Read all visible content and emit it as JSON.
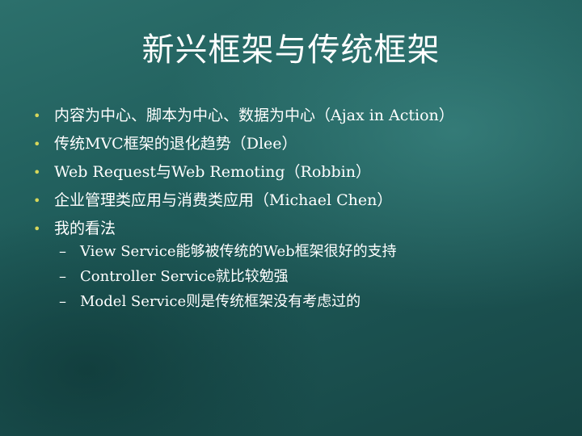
{
  "slide": {
    "title": "新兴框架与传统框架",
    "bullets": [
      {
        "text": "内容为中心、脚本为中心、数据为中心（Ajax in Action）"
      },
      {
        "text": "传统MVC框架的退化趋势（Dlee）"
      },
      {
        "text": "Web Request与Web Remoting（Robbin）"
      },
      {
        "text": "企业管理类应用与消费类应用（Michael Chen）"
      },
      {
        "text": "我的看法",
        "subitems": [
          "View Service能够被传统的Web框架很好的支持",
          "Controller Service就比较勉强",
          "Model Service则是传统框架没有考虑过的"
        ]
      }
    ]
  },
  "symbols": {
    "bullet": "•",
    "dash": "–"
  },
  "colors": {
    "background": "#1f5a58",
    "bullet": "#d7d65a",
    "text": "#ffffff"
  }
}
